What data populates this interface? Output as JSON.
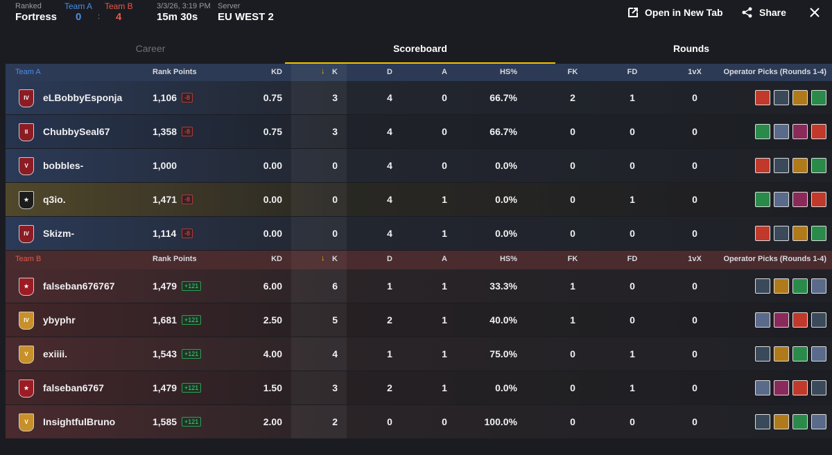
{
  "header": {
    "mode": "Ranked",
    "map": "Fortress",
    "team_a": {
      "label": "Team A",
      "score": "0"
    },
    "separator": ":",
    "team_b": {
      "label": "Team B",
      "score": "4"
    },
    "date": "3/3/26, 3:19 PM",
    "duration": "15m 30s",
    "server_label": "Server",
    "server": "EU WEST 2",
    "actions": [
      "Open in New Tab",
      "Share"
    ]
  },
  "tabs": [
    "Career",
    "Scoreboard",
    "Rounds"
  ],
  "teams": [
    {
      "name": "Team A",
      "columns": [
        "Rank Points",
        "KD",
        "K",
        "D",
        "A",
        "HS%",
        "FK",
        "FD",
        "1vX",
        "Operator Picks (Rounds 1-4)"
      ],
      "players": [
        {
          "badge": "IV",
          "name": "eLBobbyEsponja",
          "rank_points": "1,106",
          "delta": "-8",
          "kd": "0.75",
          "k": "3",
          "d": "4",
          "a": "0",
          "hs": "66.7%",
          "fk": "2",
          "fd": "1",
          "vx": "0"
        },
        {
          "badge": "II",
          "name": "ChubbySeal67",
          "rank_points": "1,358",
          "delta": "-8",
          "kd": "0.75",
          "k": "3",
          "d": "4",
          "a": "0",
          "hs": "66.7%",
          "fk": "0",
          "fd": "0",
          "vx": "0"
        },
        {
          "badge": "V",
          "name": "bobbles-",
          "rank_points": "1,000",
          "kd": "0.00",
          "k": "0",
          "d": "4",
          "a": "0",
          "hs": "0.0%",
          "fk": "0",
          "fd": "0",
          "vx": "0"
        },
        {
          "name": "q3io.",
          "rank_points": "1,471",
          "delta": "-8",
          "kd": "0.00",
          "k": "0",
          "d": "4",
          "a": "1",
          "hs": "0.0%",
          "fk": "0",
          "fd": "1",
          "vx": "0"
        },
        {
          "badge": "IV",
          "name": "Skizm-",
          "rank_points": "1,114",
          "delta": "-8",
          "kd": "0.00",
          "k": "0",
          "d": "4",
          "a": "1",
          "hs": "0.0%",
          "fk": "0",
          "fd": "0",
          "vx": "0"
        }
      ]
    },
    {
      "name": "Team B",
      "columns": [
        "Rank Points",
        "KD",
        "K",
        "D",
        "A",
        "HS%",
        "FK",
        "FD",
        "1vX",
        "Operator Picks (Rounds 1-4)"
      ],
      "players": [
        {
          "name": "falseban676767",
          "rank_points": "1,479",
          "delta": "+121",
          "kd": "6.00",
          "k": "6",
          "d": "1",
          "a": "1",
          "hs": "33.3%",
          "fk": "1",
          "fd": "0",
          "vx": "0"
        },
        {
          "badge": "IV",
          "name": "ybyphr",
          "rank_points": "1,681",
          "delta": "+121",
          "kd": "2.50",
          "k": "5",
          "d": "2",
          "a": "1",
          "hs": "40.0%",
          "fk": "1",
          "fd": "0",
          "vx": "0"
        },
        {
          "badge": "V",
          "name": "exiiii.",
          "rank_points": "1,543",
          "delta": "+121",
          "kd": "4.00",
          "k": "4",
          "d": "1",
          "a": "1",
          "hs": "75.0%",
          "fk": "0",
          "fd": "1",
          "vx": "0"
        },
        {
          "name": "falseban6767",
          "rank_points": "1,479",
          "delta": "+121",
          "kd": "1.50",
          "k": "3",
          "d": "2",
          "a": "1",
          "hs": "0.0%",
          "fk": "0",
          "fd": "1",
          "vx": "0"
        },
        {
          "badge": "V",
          "name": "InsightfulBruno",
          "rank_points": "1,585",
          "delta": "+121",
          "kd": "2.00",
          "k": "2",
          "d": "0",
          "a": "0",
          "hs": "100.0%",
          "fk": "0",
          "fd": "0",
          "vx": "0"
        }
      ]
    }
  ]
}
